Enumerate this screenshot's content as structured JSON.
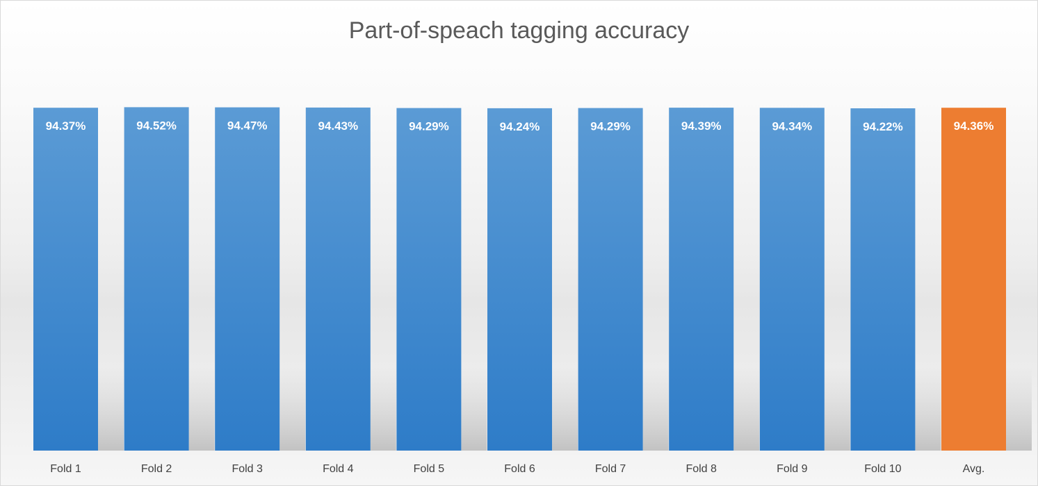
{
  "chart_data": {
    "type": "bar",
    "title": "Part-of-speach tagging accuracy",
    "xlabel": "",
    "ylabel": "",
    "categories": [
      "Fold 1",
      "Fold 2",
      "Fold 3",
      "Fold 4",
      "Fold 5",
      "Fold 6",
      "Fold 7",
      "Fold 8",
      "Fold 9",
      "Fold 10",
      "Avg."
    ],
    "values": [
      94.37,
      94.52,
      94.47,
      94.43,
      94.29,
      94.24,
      94.29,
      94.39,
      94.34,
      94.22,
      94.36
    ],
    "value_labels": [
      "94.37%",
      "94.52%",
      "94.47%",
      "94.43%",
      "94.29%",
      "94.24%",
      "94.29%",
      "94.39%",
      "94.34%",
      "94.22%",
      "94.36%"
    ],
    "ylim": [
      0,
      100.9
    ],
    "grid": false,
    "legend": "none",
    "colors": {
      "default": "#5b9bd5",
      "default_dark": "#2e7cc8",
      "highlight": "#ed7d31",
      "highlight_index": 10
    }
  }
}
